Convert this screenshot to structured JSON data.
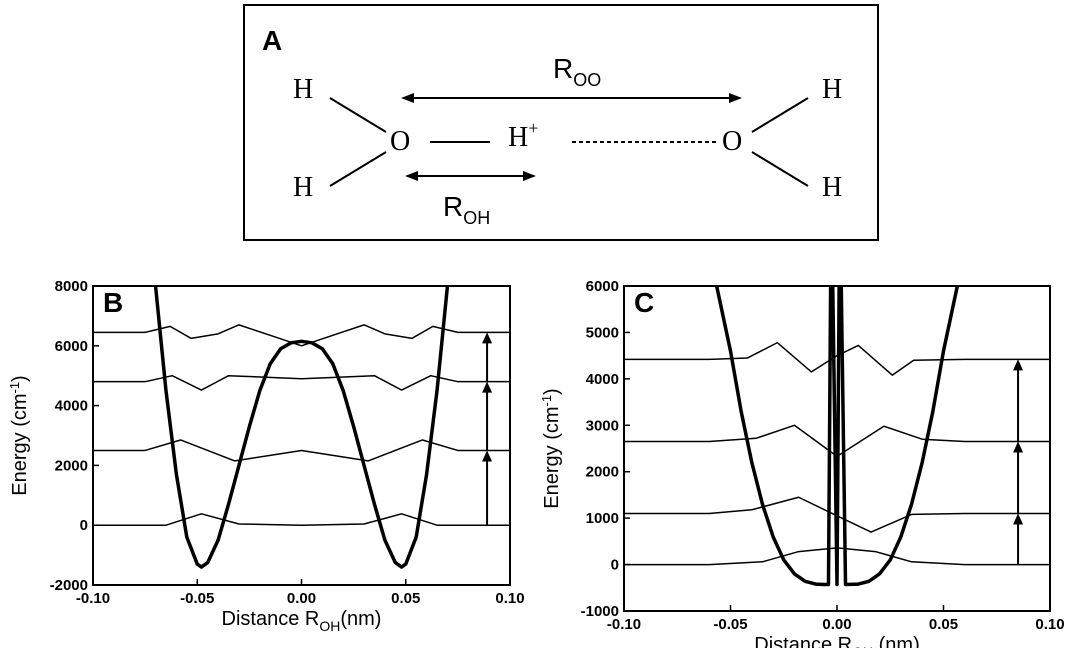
{
  "schematic": {
    "panel_label": "A",
    "atoms": {
      "h_top_left": "H",
      "h_bottom_left": "H",
      "o_left": "O",
      "proton": "H",
      "proton_charge": "+",
      "o_right": "O",
      "h_top_right": "H",
      "h_bottom_right": "H"
    },
    "r_oo": {
      "main": "R",
      "sub": "OO"
    },
    "r_oh": {
      "main": "R",
      "sub": "OH"
    }
  },
  "chart_data": [
    {
      "id": "B",
      "type": "line",
      "panel_label": "B",
      "xlabel": {
        "main": "Distance R",
        "sub": "OH",
        "tail": "(nm)"
      },
      "ylabel": {
        "main": "Energy (cm",
        "sup": "-1",
        "tail": ")"
      },
      "xlim": [
        -0.1,
        0.1
      ],
      "ylim": [
        -2000,
        8000
      ],
      "xticks": [
        -0.1,
        -0.05,
        0.0,
        0.05,
        0.1
      ],
      "xtick_labels": [
        "-0.10",
        "-0.05",
        "0.00",
        "0.05",
        "0.10"
      ],
      "yticks": [
        -2000,
        0,
        2000,
        4000,
        6000,
        8000
      ],
      "ytick_labels": [
        "-2000",
        "0",
        "2000",
        "4000",
        "6000",
        "8000"
      ],
      "potential": {
        "kind": "double_well",
        "x": [
          -0.07,
          -0.065,
          -0.06,
          -0.055,
          -0.05,
          -0.048,
          -0.045,
          -0.04,
          -0.035,
          -0.03,
          -0.025,
          -0.02,
          -0.015,
          -0.01,
          -0.005,
          0.0,
          0.005,
          0.01,
          0.015,
          0.02,
          0.025,
          0.03,
          0.035,
          0.04,
          0.045,
          0.048,
          0.05,
          0.055,
          0.06,
          0.065,
          0.07
        ],
        "y": [
          8000,
          4500,
          1700,
          -400,
          -1300,
          -1400,
          -1250,
          -500,
          700,
          2000,
          3300,
          4500,
          5400,
          5900,
          6100,
          6150,
          6100,
          5900,
          5400,
          4500,
          3300,
          2000,
          700,
          -500,
          -1250,
          -1400,
          -1300,
          -400,
          1700,
          4500,
          8000
        ]
      },
      "levels": [
        {
          "energy": 0,
          "wave": {
            "x": [
              -0.065,
              -0.048,
              -0.03,
              0.0,
              0.03,
              0.048,
              0.065
            ],
            "y": [
              0,
              380,
              40,
              0,
              40,
              380,
              0
            ]
          }
        },
        {
          "energy": 2500,
          "wave": {
            "x": [
              -0.075,
              -0.058,
              -0.032,
              0.0,
              0.032,
              0.058,
              0.075
            ],
            "y": [
              2500,
              2850,
              2150,
              2500,
              2150,
              2850,
              2500
            ]
          }
        },
        {
          "energy": 4800,
          "wave": {
            "x": [
              -0.075,
              -0.062,
              -0.048,
              -0.035,
              0.0,
              0.035,
              0.048,
              0.062,
              0.075
            ],
            "y": [
              4800,
              5000,
              4520,
              5000,
              4900,
              5000,
              4520,
              5000,
              4800
            ]
          }
        },
        {
          "energy": 6450,
          "wave": {
            "x": [
              -0.075,
              -0.063,
              -0.053,
              -0.04,
              -0.03,
              -0.015,
              0.0,
              0.015,
              0.03,
              0.04,
              0.053,
              0.063,
              0.075
            ],
            "y": [
              6450,
              6650,
              6250,
              6400,
              6700,
              6350,
              6000,
              6350,
              6700,
              6400,
              6250,
              6650,
              6450
            ]
          }
        }
      ],
      "transition_arrows": {
        "x": 0.089,
        "from": [
          0,
          2500,
          4800
        ],
        "to": [
          2500,
          4800,
          6450
        ]
      }
    },
    {
      "id": "C",
      "type": "line",
      "panel_label": "C",
      "xlabel": {
        "main": "Distance R",
        "sub": "OH",
        "tail": " (nm)"
      },
      "ylabel": {
        "main": "Energy (cm",
        "sup": "-1",
        "tail": ")"
      },
      "xlim": [
        -0.1,
        0.1
      ],
      "ylim": [
        -1000,
        6000
      ],
      "xticks": [
        -0.1,
        -0.05,
        0.0,
        0.05,
        0.1
      ],
      "xtick_labels": [
        "-0.10",
        "-0.05",
        "0.00",
        "0.05",
        "0.10"
      ],
      "yticks": [
        -1000,
        0,
        1000,
        2000,
        3000,
        4000,
        5000,
        6000
      ],
      "ytick_labels": [
        "-1000",
        "0",
        "1000",
        "2000",
        "3000",
        "4000",
        "5000",
        "6000"
      ],
      "potential": {
        "kind": "single_well_with_spike",
        "x": [
          -0.0565,
          -0.05,
          -0.045,
          -0.04,
          -0.035,
          -0.03,
          -0.025,
          -0.02,
          -0.015,
          -0.01,
          -0.006,
          -0.004,
          -0.003,
          -0.002,
          0.0,
          0.001,
          0.002,
          0.004,
          0.01,
          0.015,
          0.02,
          0.025,
          0.03,
          0.035,
          0.04,
          0.045,
          0.05,
          0.0565
        ],
        "y": [
          6000,
          4600,
          3300,
          2200,
          1300,
          600,
          100,
          -200,
          -360,
          -420,
          -430,
          -430,
          6000,
          6000,
          -430,
          6000,
          6000,
          -430,
          -420,
          -360,
          -200,
          100,
          600,
          1300,
          2200,
          3300,
          4600,
          6000
        ]
      },
      "levels": [
        {
          "energy": 0,
          "wave": {
            "x": [
              -0.06,
              -0.035,
              -0.018,
              0.0,
              0.018,
              0.035,
              0.06
            ],
            "y": [
              0,
              60,
              280,
              360,
              280,
              60,
              0
            ]
          }
        },
        {
          "energy": 1100,
          "wave": {
            "x": [
              -0.06,
              -0.04,
              -0.018,
              0.0,
              0.016,
              0.035,
              0.06
            ],
            "y": [
              1100,
              1180,
              1450,
              1050,
              700,
              1080,
              1100
            ]
          }
        },
        {
          "energy": 2650,
          "wave": {
            "x": [
              -0.06,
              -0.038,
              -0.02,
              0.0,
              0.022,
              0.04,
              0.06
            ],
            "y": [
              2650,
              2720,
              3000,
              2330,
              2980,
              2700,
              2650
            ]
          }
        },
        {
          "energy": 4420,
          "wave": {
            "x": [
              -0.06,
              -0.042,
              -0.028,
              -0.012,
              0.0,
              0.01,
              0.026,
              0.036,
              0.06
            ],
            "y": [
              4420,
              4450,
              4780,
              4150,
              4500,
              4720,
              4080,
              4400,
              4420
            ]
          }
        }
      ],
      "transition_arrows": {
        "x": 0.085,
        "from": [
          0,
          1100,
          2650
        ],
        "to": [
          1100,
          2650,
          4420
        ]
      }
    }
  ]
}
